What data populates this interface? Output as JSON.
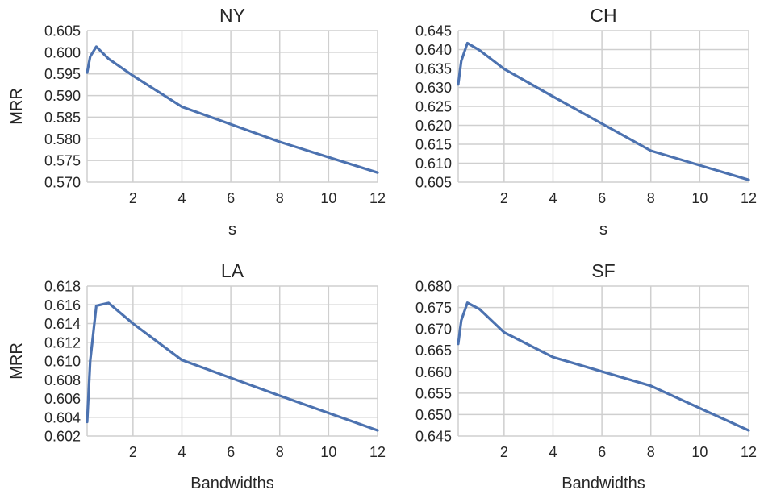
{
  "figure": {
    "line_color": "#4c72b0",
    "grid_color": "#cfcfcf",
    "text_color": "#262626",
    "grid": true
  },
  "chart_data": [
    {
      "type": "line",
      "title": "NY",
      "xlabel": "s",
      "ylabel": "MRR",
      "xlim": [
        0.125,
        12
      ],
      "ylim": [
        0.57,
        0.605
      ],
      "xticks": [
        2,
        4,
        6,
        8,
        10,
        12
      ],
      "xtick_labels": [
        "2",
        "4",
        "6",
        "8",
        "10",
        "12"
      ],
      "yticks": [
        0.57,
        0.575,
        0.58,
        0.585,
        0.59,
        0.595,
        0.6,
        0.605
      ],
      "ytick_labels": [
        "0.570",
        "0.575",
        "0.580",
        "0.585",
        "0.590",
        "0.595",
        "0.600",
        "0.605"
      ],
      "x": [
        0.125,
        0.25,
        0.5,
        1,
        2,
        4,
        8,
        12
      ],
      "y": [
        0.5953,
        0.599,
        0.6013,
        0.5985,
        0.5946,
        0.5874,
        0.5793,
        0.5722
      ]
    },
    {
      "type": "line",
      "title": "CH",
      "xlabel": "s",
      "ylabel": "",
      "xlim": [
        0.125,
        12
      ],
      "ylim": [
        0.605,
        0.645
      ],
      "xticks": [
        2,
        4,
        6,
        8,
        10,
        12
      ],
      "xtick_labels": [
        "2",
        "4",
        "6",
        "8",
        "10",
        "12"
      ],
      "yticks": [
        0.605,
        0.61,
        0.615,
        0.62,
        0.625,
        0.63,
        0.635,
        0.64,
        0.645
      ],
      "ytick_labels": [
        "0.605",
        "0.610",
        "0.615",
        "0.620",
        "0.625",
        "0.630",
        "0.635",
        "0.640",
        "0.645"
      ],
      "x": [
        0.125,
        0.25,
        0.5,
        1,
        2,
        4,
        8,
        12
      ],
      "y": [
        0.6308,
        0.637,
        0.6417,
        0.6398,
        0.6349,
        0.6276,
        0.6133,
        0.6056
      ]
    },
    {
      "type": "line",
      "title": "LA",
      "xlabel": "Bandwidths",
      "ylabel": "MRR",
      "xlim": [
        0.125,
        12
      ],
      "ylim": [
        0.602,
        0.618
      ],
      "xticks": [
        2,
        4,
        6,
        8,
        10,
        12
      ],
      "xtick_labels": [
        "2",
        "4",
        "6",
        "8",
        "10",
        "12"
      ],
      "yticks": [
        0.602,
        0.604,
        0.606,
        0.608,
        0.61,
        0.612,
        0.614,
        0.616,
        0.618
      ],
      "ytick_labels": [
        "0.602",
        "0.604",
        "0.606",
        "0.608",
        "0.610",
        "0.612",
        "0.614",
        "0.616",
        "0.618"
      ],
      "x": [
        0.125,
        0.25,
        0.5,
        1,
        2,
        4,
        8,
        12
      ],
      "y": [
        0.6035,
        0.61,
        0.6159,
        0.6162,
        0.614,
        0.6101,
        0.6063,
        0.6026
      ]
    },
    {
      "type": "line",
      "title": "SF",
      "xlabel": "Bandwidths",
      "ylabel": "",
      "xlim": [
        0.125,
        12
      ],
      "ylim": [
        0.645,
        0.68
      ],
      "xticks": [
        2,
        4,
        6,
        8,
        10,
        12
      ],
      "xtick_labels": [
        "2",
        "4",
        "6",
        "8",
        "10",
        "12"
      ],
      "yticks": [
        0.645,
        0.65,
        0.655,
        0.66,
        0.665,
        0.67,
        0.675,
        0.68
      ],
      "ytick_labels": [
        "0.645",
        "0.650",
        "0.655",
        "0.660",
        "0.665",
        "0.670",
        "0.675",
        "0.680"
      ],
      "x": [
        0.125,
        0.25,
        0.5,
        1,
        2,
        4,
        8,
        12
      ],
      "y": [
        0.6665,
        0.672,
        0.6761,
        0.6746,
        0.6692,
        0.6634,
        0.6567,
        0.6463
      ]
    }
  ]
}
